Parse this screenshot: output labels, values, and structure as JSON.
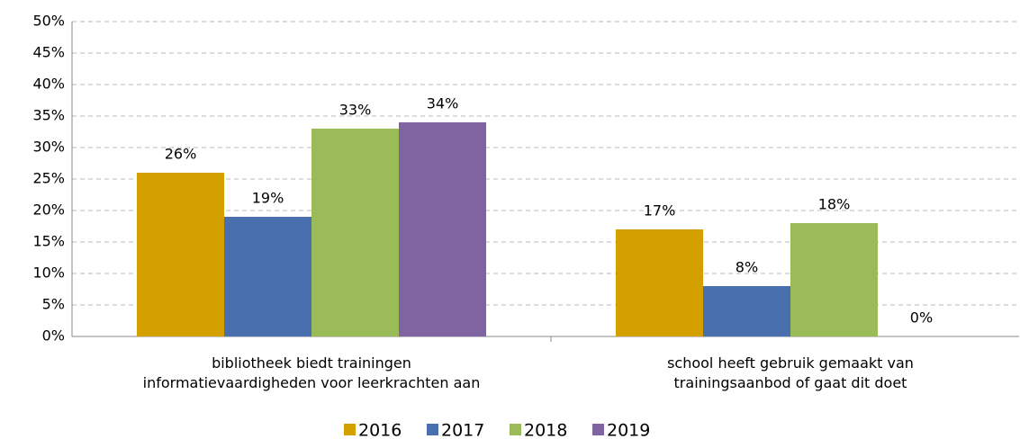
{
  "chart_data": {
    "type": "bar",
    "categories": [
      "bibliotheek biedt trainingen\ninformatievaardigheden voor leerkrachten aan",
      "school heeft gebruik gemaakt van\ntrainingsaanbod of gaat dit doet"
    ],
    "series": [
      {
        "name": "2016",
        "color": "#d4a000",
        "values": [
          26,
          17
        ],
        "value_labels": [
          "26%",
          "17%"
        ]
      },
      {
        "name": "2017",
        "color": "#4a6fae",
        "values": [
          19,
          8
        ],
        "value_labels": [
          "19%",
          "8%"
        ]
      },
      {
        "name": "2018",
        "color": "#9bbb59",
        "values": [
          33,
          18
        ],
        "value_labels": [
          "33%",
          "18%"
        ]
      },
      {
        "name": "2019",
        "color": "#8064a2",
        "values": [
          34,
          0
        ],
        "value_labels": [
          "34%",
          "0%"
        ]
      }
    ],
    "ylim": [
      0,
      50
    ],
    "yticks": [
      {
        "value": 0,
        "label": "0%"
      },
      {
        "value": 5,
        "label": "5%"
      },
      {
        "value": 10,
        "label": "10%"
      },
      {
        "value": 15,
        "label": "15%"
      },
      {
        "value": 20,
        "label": "20%"
      },
      {
        "value": 25,
        "label": "25%"
      },
      {
        "value": 30,
        "label": "30%"
      },
      {
        "value": 35,
        "label": "35%"
      },
      {
        "value": 40,
        "label": "40%"
      },
      {
        "value": 45,
        "label": "45%"
      },
      {
        "value": 50,
        "label": "50%"
      }
    ],
    "grid": true,
    "legend": "bottom"
  }
}
